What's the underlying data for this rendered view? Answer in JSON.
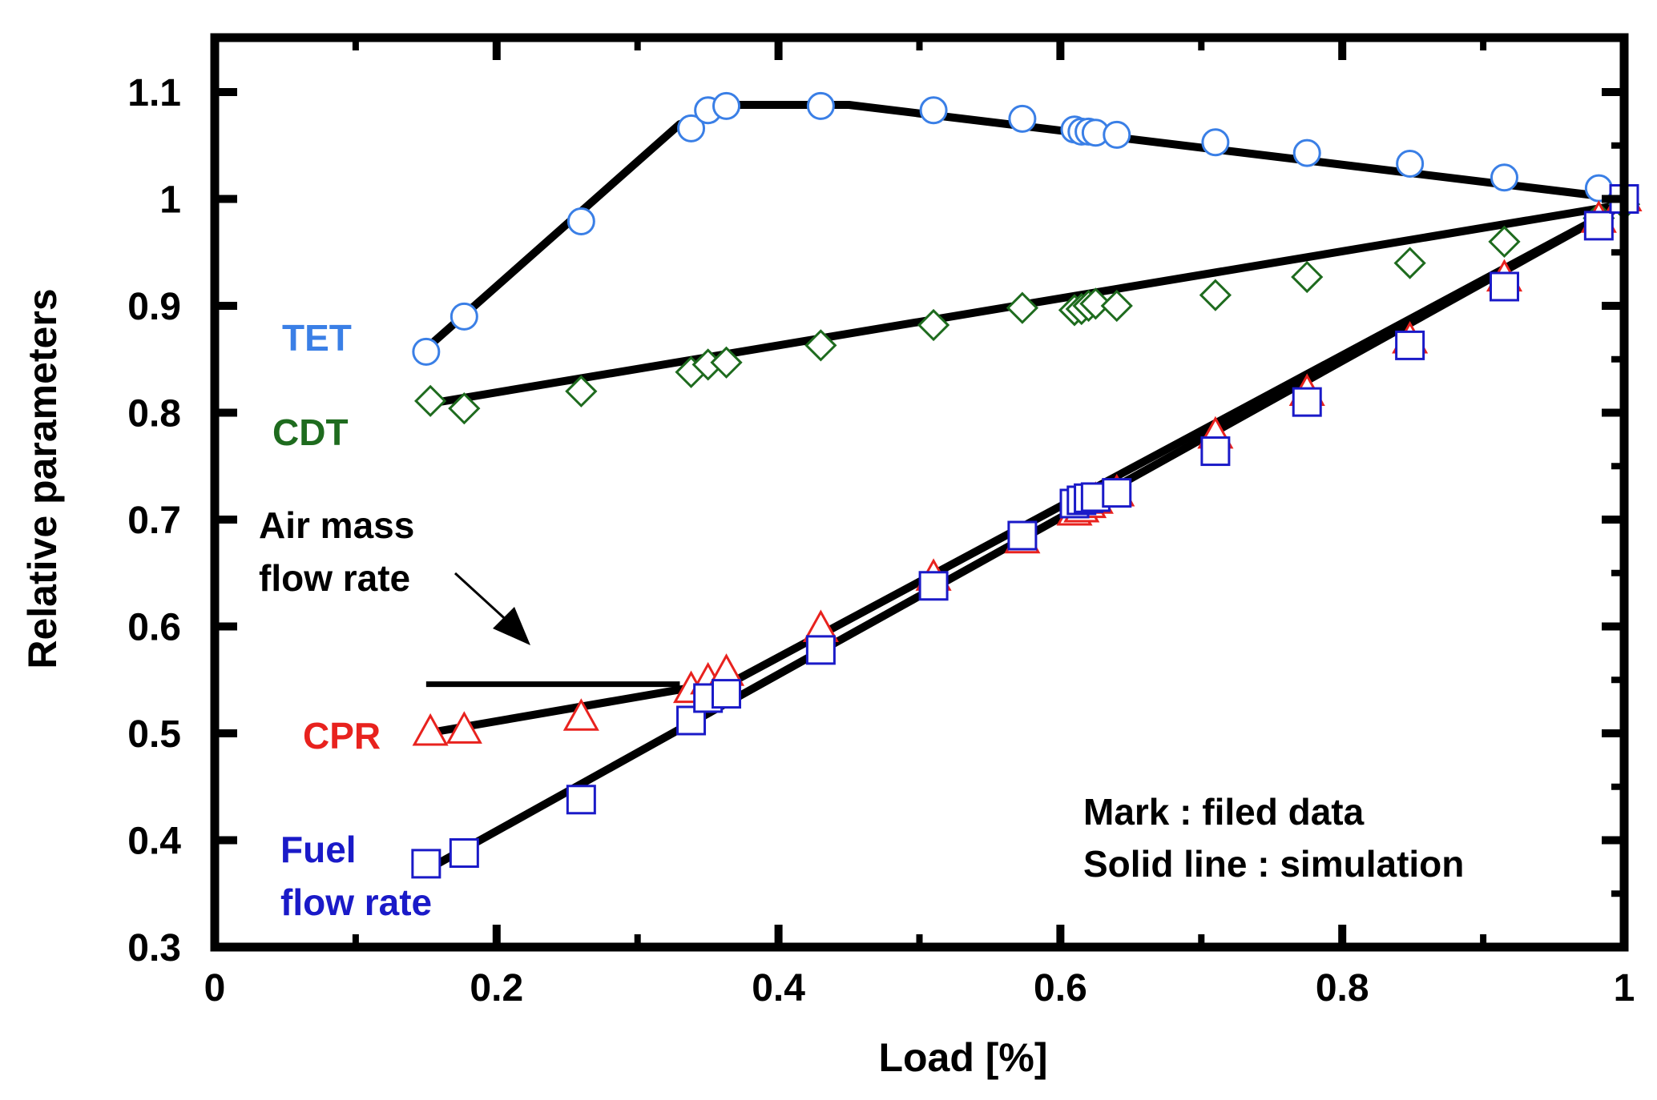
{
  "chart_data": {
    "type": "scatter",
    "title": "",
    "xlabel": "Load [%]",
    "ylabel": "Relative parameters",
    "xlim": [
      0,
      1
    ],
    "ylim": [
      0.3,
      1.1
    ],
    "grid": false,
    "xticks": [
      0,
      0.2,
      0.4,
      0.6,
      0.8,
      1
    ],
    "xtick_labels": [
      "0",
      "0.2",
      "0.4",
      "0.6",
      "0.8",
      "1"
    ],
    "yticks": [
      0.3,
      0.4,
      0.5,
      0.6,
      0.7,
      0.8,
      0.9,
      1,
      1.1
    ],
    "ytick_labels": [
      "0.3",
      "0.4",
      "0.5",
      "0.6",
      "0.7",
      "0.8",
      "0.9",
      "1",
      "1.1"
    ],
    "series": [
      {
        "name": "TET",
        "color": "#3a7fe6",
        "marker": "circle",
        "x": [
          0.15,
          0.177,
          0.26,
          0.338,
          0.35,
          0.363,
          0.43,
          0.51,
          0.573,
          0.61,
          0.615,
          0.62,
          0.625,
          0.64,
          0.71,
          0.775,
          0.848,
          0.915,
          0.982,
          1.0
        ],
        "y": [
          0.857,
          0.89,
          0.979,
          1.066,
          1.083,
          1.087,
          1.087,
          1.083,
          1.075,
          1.065,
          1.063,
          1.063,
          1.062,
          1.06,
          1.053,
          1.043,
          1.033,
          1.02,
          1.01,
          1.0
        ],
        "line": {
          "x": [
            0.15,
            0.33,
            0.37,
            0.45,
            1.0
          ],
          "y": [
            0.86,
            1.07,
            1.088,
            1.088,
            1.0
          ]
        }
      },
      {
        "name": "CDT",
        "color": "#1e6b1e",
        "marker": "diamond",
        "x": [
          0.153,
          0.177,
          0.26,
          0.338,
          0.35,
          0.363,
          0.43,
          0.51,
          0.573,
          0.61,
          0.615,
          0.62,
          0.625,
          0.64,
          0.71,
          0.775,
          0.848,
          0.915,
          0.982,
          1.0
        ],
        "y": [
          0.811,
          0.804,
          0.82,
          0.838,
          0.845,
          0.847,
          0.863,
          0.882,
          0.898,
          0.896,
          0.897,
          0.9,
          0.902,
          0.9,
          0.91,
          0.927,
          0.94,
          0.96,
          0.982,
          0.995
        ],
        "line": {
          "x": [
            0.15,
            1.0
          ],
          "y": [
            0.808,
            0.995
          ]
        }
      },
      {
        "name": "CPR",
        "color": "#e8221e",
        "marker": "triangle",
        "x": [
          0.153,
          0.177,
          0.26,
          0.338,
          0.35,
          0.363,
          0.43,
          0.51,
          0.573,
          0.61,
          0.615,
          0.62,
          0.625,
          0.64,
          0.71,
          0.775,
          0.848,
          0.915,
          0.982,
          1.0
        ],
        "y": [
          0.5,
          0.502,
          0.514,
          0.54,
          0.548,
          0.556,
          0.597,
          0.645,
          0.68,
          0.706,
          0.709,
          0.713,
          0.717,
          0.724,
          0.778,
          0.818,
          0.867,
          0.925,
          0.98,
          1.0
        ],
        "line": {
          "x": [
            0.15,
            0.37,
            1.0
          ],
          "y": [
            0.5,
            0.55,
            0.995
          ]
        }
      },
      {
        "name": "Fuel flow rate",
        "color": "#1a1ac8",
        "marker": "square",
        "x": [
          0.15,
          0.177,
          0.26,
          0.338,
          0.35,
          0.363,
          0.43,
          0.51,
          0.573,
          0.61,
          0.615,
          0.62,
          0.625,
          0.64,
          0.71,
          0.775,
          0.848,
          0.915,
          0.982,
          1.0
        ],
        "y": [
          0.378,
          0.388,
          0.438,
          0.512,
          0.533,
          0.537,
          0.578,
          0.638,
          0.685,
          0.715,
          0.718,
          0.72,
          0.721,
          0.725,
          0.764,
          0.81,
          0.863,
          0.918,
          0.975,
          1.0
        ],
        "line": {
          "x": [
            0.15,
            1.0
          ],
          "y": [
            0.372,
            0.995
          ]
        }
      },
      {
        "name": "Air mass flow rate",
        "color": "#000000",
        "marker": "none",
        "line": {
          "x": [
            0.15,
            0.33
          ],
          "y": [
            0.546,
            0.546
          ]
        }
      }
    ],
    "annotations": {
      "tet": "TET",
      "cdt": "CDT",
      "air_line1": "Air mass",
      "air_line2": "flow rate",
      "cpr": "CPR",
      "fuel_line1": "Fuel",
      "fuel_line2": "flow rate",
      "note_line1": "Mark : filed data",
      "note_line2": "Solid line : simulation"
    }
  }
}
